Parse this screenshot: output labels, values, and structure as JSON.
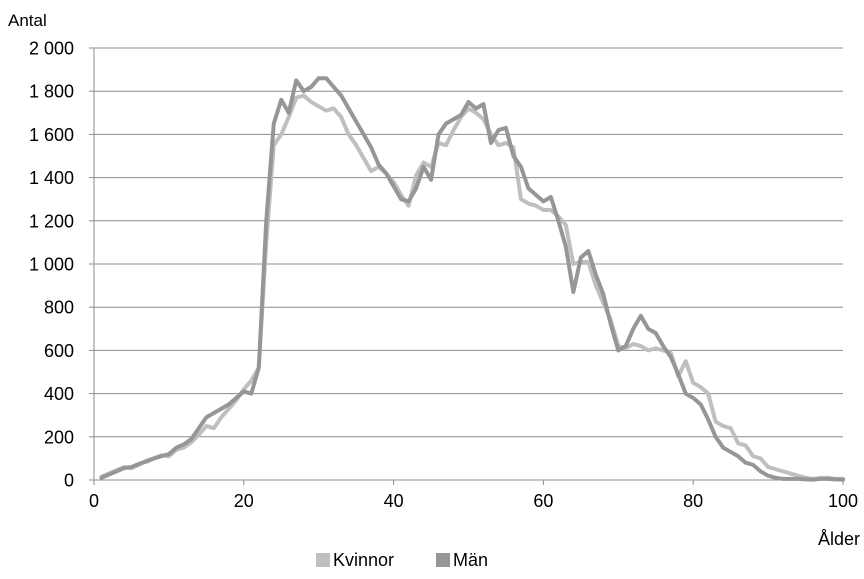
{
  "chart_data": {
    "type": "line",
    "title": "",
    "ylabel": "Antal",
    "xlabel": "Ålder",
    "xlim": [
      0,
      100
    ],
    "ylim": [
      0,
      2000
    ],
    "grid": true,
    "legend_position": "bottom",
    "x_ticks": [
      {
        "value": 0,
        "label": "0"
      },
      {
        "value": 20,
        "label": "20"
      },
      {
        "value": 40,
        "label": "40"
      },
      {
        "value": 60,
        "label": "60"
      },
      {
        "value": 80,
        "label": "80"
      },
      {
        "value": 100,
        "label": "100"
      }
    ],
    "y_ticks": [
      {
        "value": 0,
        "label": "0"
      },
      {
        "value": 200,
        "label": "200"
      },
      {
        "value": 400,
        "label": "400"
      },
      {
        "value": 600,
        "label": "600"
      },
      {
        "value": 800,
        "label": "800"
      },
      {
        "value": 1000,
        "label": "1 000"
      },
      {
        "value": 1200,
        "label": "1 200"
      },
      {
        "value": 1400,
        "label": "1 400"
      },
      {
        "value": 1600,
        "label": "1 600"
      },
      {
        "value": 1800,
        "label": "1 800"
      },
      {
        "value": 2000,
        "label": "2 000"
      }
    ],
    "series": [
      {
        "name": "Kvinnor",
        "color": "#bfbfbf",
        "points": [
          [
            1,
            15
          ],
          [
            2,
            30
          ],
          [
            3,
            45
          ],
          [
            4,
            60
          ],
          [
            5,
            55
          ],
          [
            6,
            70
          ],
          [
            7,
            90
          ],
          [
            8,
            100
          ],
          [
            9,
            115
          ],
          [
            10,
            110
          ],
          [
            11,
            140
          ],
          [
            12,
            150
          ],
          [
            13,
            175
          ],
          [
            14,
            210
          ],
          [
            15,
            250
          ],
          [
            16,
            240
          ],
          [
            17,
            290
          ],
          [
            18,
            330
          ],
          [
            19,
            370
          ],
          [
            20,
            420
          ],
          [
            21,
            460
          ],
          [
            22,
            520
          ],
          [
            23,
            1100
          ],
          [
            24,
            1550
          ],
          [
            25,
            1600
          ],
          [
            26,
            1680
          ],
          [
            27,
            1770
          ],
          [
            28,
            1780
          ],
          [
            29,
            1750
          ],
          [
            30,
            1730
          ],
          [
            31,
            1710
          ],
          [
            32,
            1720
          ],
          [
            33,
            1680
          ],
          [
            34,
            1600
          ],
          [
            35,
            1550
          ],
          [
            36,
            1490
          ],
          [
            37,
            1430
          ],
          [
            38,
            1450
          ],
          [
            39,
            1420
          ],
          [
            40,
            1380
          ],
          [
            41,
            1320
          ],
          [
            42,
            1270
          ],
          [
            43,
            1410
          ],
          [
            44,
            1470
          ],
          [
            45,
            1450
          ],
          [
            46,
            1560
          ],
          [
            47,
            1550
          ],
          [
            48,
            1620
          ],
          [
            49,
            1680
          ],
          [
            50,
            1720
          ],
          [
            51,
            1700
          ],
          [
            52,
            1670
          ],
          [
            53,
            1600
          ],
          [
            54,
            1550
          ],
          [
            55,
            1560
          ],
          [
            56,
            1540
          ],
          [
            57,
            1300
          ],
          [
            58,
            1280
          ],
          [
            59,
            1270
          ],
          [
            60,
            1250
          ],
          [
            61,
            1250
          ],
          [
            62,
            1220
          ],
          [
            63,
            1180
          ],
          [
            64,
            1000
          ],
          [
            65,
            1010
          ],
          [
            66,
            1010
          ],
          [
            67,
            900
          ],
          [
            68,
            820
          ],
          [
            69,
            740
          ],
          [
            70,
            620
          ],
          [
            71,
            610
          ],
          [
            72,
            630
          ],
          [
            73,
            620
          ],
          [
            74,
            600
          ],
          [
            75,
            610
          ],
          [
            76,
            600
          ],
          [
            77,
            590
          ],
          [
            78,
            480
          ],
          [
            79,
            550
          ],
          [
            80,
            450
          ],
          [
            81,
            430
          ],
          [
            82,
            400
          ],
          [
            83,
            270
          ],
          [
            84,
            250
          ],
          [
            85,
            240
          ],
          [
            86,
            170
          ],
          [
            87,
            160
          ],
          [
            88,
            110
          ],
          [
            89,
            100
          ],
          [
            90,
            60
          ],
          [
            91,
            50
          ],
          [
            92,
            40
          ],
          [
            93,
            30
          ],
          [
            94,
            20
          ],
          [
            95,
            10
          ],
          [
            96,
            5
          ],
          [
            97,
            10
          ],
          [
            98,
            10
          ],
          [
            99,
            5
          ],
          [
            100,
            5
          ]
        ]
      },
      {
        "name": "Män",
        "color": "#969696",
        "points": [
          [
            1,
            10
          ],
          [
            2,
            25
          ],
          [
            3,
            40
          ],
          [
            4,
            55
          ],
          [
            5,
            60
          ],
          [
            6,
            75
          ],
          [
            7,
            85
          ],
          [
            8,
            100
          ],
          [
            9,
            110
          ],
          [
            10,
            120
          ],
          [
            11,
            150
          ],
          [
            12,
            165
          ],
          [
            13,
            190
          ],
          [
            14,
            240
          ],
          [
            15,
            290
          ],
          [
            16,
            310
          ],
          [
            17,
            330
          ],
          [
            18,
            350
          ],
          [
            19,
            380
          ],
          [
            20,
            410
          ],
          [
            21,
            400
          ],
          [
            22,
            520
          ],
          [
            23,
            1200
          ],
          [
            24,
            1650
          ],
          [
            25,
            1760
          ],
          [
            26,
            1700
          ],
          [
            27,
            1850
          ],
          [
            28,
            1800
          ],
          [
            29,
            1820
          ],
          [
            30,
            1860
          ],
          [
            31,
            1860
          ],
          [
            32,
            1820
          ],
          [
            33,
            1780
          ],
          [
            34,
            1720
          ],
          [
            35,
            1660
          ],
          [
            36,
            1600
          ],
          [
            37,
            1540
          ],
          [
            38,
            1460
          ],
          [
            39,
            1420
          ],
          [
            40,
            1360
          ],
          [
            41,
            1300
          ],
          [
            42,
            1290
          ],
          [
            43,
            1350
          ],
          [
            44,
            1450
          ],
          [
            45,
            1390
          ],
          [
            46,
            1600
          ],
          [
            47,
            1650
          ],
          [
            48,
            1670
          ],
          [
            49,
            1690
          ],
          [
            50,
            1750
          ],
          [
            51,
            1720
          ],
          [
            52,
            1740
          ],
          [
            53,
            1560
          ],
          [
            54,
            1620
          ],
          [
            55,
            1630
          ],
          [
            56,
            1500
          ],
          [
            57,
            1450
          ],
          [
            58,
            1350
          ],
          [
            59,
            1320
          ],
          [
            60,
            1290
          ],
          [
            61,
            1310
          ],
          [
            62,
            1200
          ],
          [
            63,
            1080
          ],
          [
            64,
            870
          ],
          [
            65,
            1030
          ],
          [
            66,
            1060
          ],
          [
            67,
            950
          ],
          [
            68,
            860
          ],
          [
            69,
            720
          ],
          [
            70,
            600
          ],
          [
            71,
            620
          ],
          [
            72,
            700
          ],
          [
            73,
            760
          ],
          [
            74,
            700
          ],
          [
            75,
            680
          ],
          [
            76,
            620
          ],
          [
            77,
            570
          ],
          [
            78,
            490
          ],
          [
            79,
            400
          ],
          [
            80,
            380
          ],
          [
            81,
            350
          ],
          [
            82,
            280
          ],
          [
            83,
            200
          ],
          [
            84,
            150
          ],
          [
            85,
            130
          ],
          [
            86,
            110
          ],
          [
            87,
            80
          ],
          [
            88,
            70
          ],
          [
            89,
            40
          ],
          [
            90,
            20
          ],
          [
            91,
            10
          ],
          [
            92,
            5
          ],
          [
            93,
            5
          ],
          [
            94,
            5
          ],
          [
            95,
            3
          ],
          [
            96,
            2
          ],
          [
            97,
            5
          ],
          [
            98,
            5
          ],
          [
            99,
            3
          ],
          [
            100,
            2
          ]
        ]
      }
    ]
  }
}
